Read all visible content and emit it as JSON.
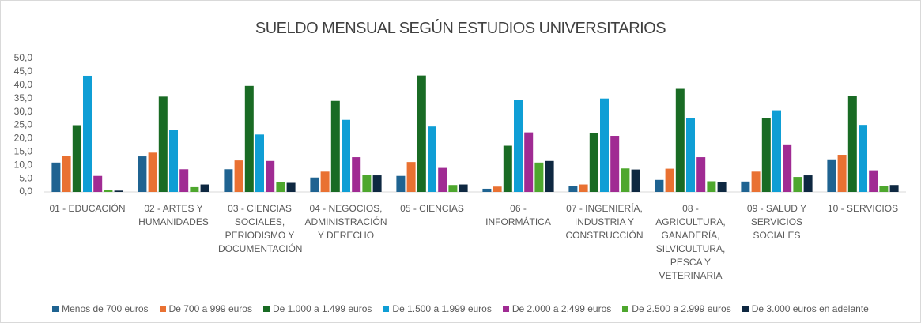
{
  "chart_data": {
    "type": "bar",
    "title": "SUELDO MENSUAL SEGÚN ESTUDIOS  UNIVERSITARIOS",
    "categories": [
      "01 - EDUCACIÓN",
      "02 - ARTES Y HUMANIDADES",
      "03 - CIENCIAS SOCIALES, PERIODISMO Y DOCUMENTACIÓN",
      "04 - NEGOCIOS, ADMINISTRACIÓN Y DERECHO",
      "05 - CIENCIAS",
      "06 - INFORMÁTICA",
      "07 - INGENIERÍA, INDUSTRIA Y CONSTRUCCIÓN",
      "08 - AGRICULTURA, GANADERÍA, SILVICULTURA, PESCA Y VETERINARIA",
      "09 - SALUD Y SERVICIOS SOCIALES",
      "10 - SERVICIOS"
    ],
    "series": [
      {
        "name": "Menos de 700 euros",
        "color": "#1f6391",
        "values": [
          11,
          13.3,
          8.5,
          5.4,
          6,
          1.2,
          2.3,
          4.5,
          3.9,
          12.2
        ]
      },
      {
        "name": "De 700 a 999 euros",
        "color": "#e97132",
        "values": [
          13.5,
          14.7,
          11.8,
          7.6,
          11.2,
          2,
          2.8,
          8.7,
          7.6,
          13.9
        ]
      },
      {
        "name": "De 1.000 a 1.499 euros",
        "color": "#196b24",
        "values": [
          25,
          35.7,
          39.7,
          34.1,
          43.6,
          17.3,
          22,
          38.6,
          27.6,
          36
        ]
      },
      {
        "name": "De 1.500 a 1.999 euros",
        "color": "#0f9ed5",
        "values": [
          43.5,
          23.2,
          21.5,
          27,
          24.5,
          34.6,
          35,
          27.6,
          30.6,
          25.1
        ]
      },
      {
        "name": "De 2.000 a 2.499 euros",
        "color": "#a02b93",
        "values": [
          6,
          8.5,
          11.6,
          13,
          9,
          22.3,
          21,
          13,
          17.8,
          8.1
        ]
      },
      {
        "name": "De 2.500 a 2.999 euros",
        "color": "#4ea72e",
        "values": [
          0.8,
          1.8,
          3.6,
          6.3,
          2.6,
          11,
          8.8,
          4,
          5.6,
          2.3
        ]
      },
      {
        "name": "De 3.000 euros en adelante",
        "color": "#0e2841",
        "values": [
          0.5,
          2.8,
          3.4,
          6.2,
          2.8,
          11.6,
          8.4,
          3.6,
          6.2,
          2.6
        ]
      }
    ],
    "ylim": [
      0,
      50
    ],
    "yticks": [
      {
        "value": 0,
        "label": "0,0"
      },
      {
        "value": 5,
        "label": "5,0"
      },
      {
        "value": 10,
        "label": "10,0"
      },
      {
        "value": 15,
        "label": "15,0"
      },
      {
        "value": 20,
        "label": "20,0"
      },
      {
        "value": 25,
        "label": "25,0"
      },
      {
        "value": 30,
        "label": "30,0"
      },
      {
        "value": 35,
        "label": "35,0"
      },
      {
        "value": 40,
        "label": "40,0"
      },
      {
        "value": 45,
        "label": "45,0"
      },
      {
        "value": 50,
        "label": "50,0"
      }
    ],
    "grid": false
  }
}
